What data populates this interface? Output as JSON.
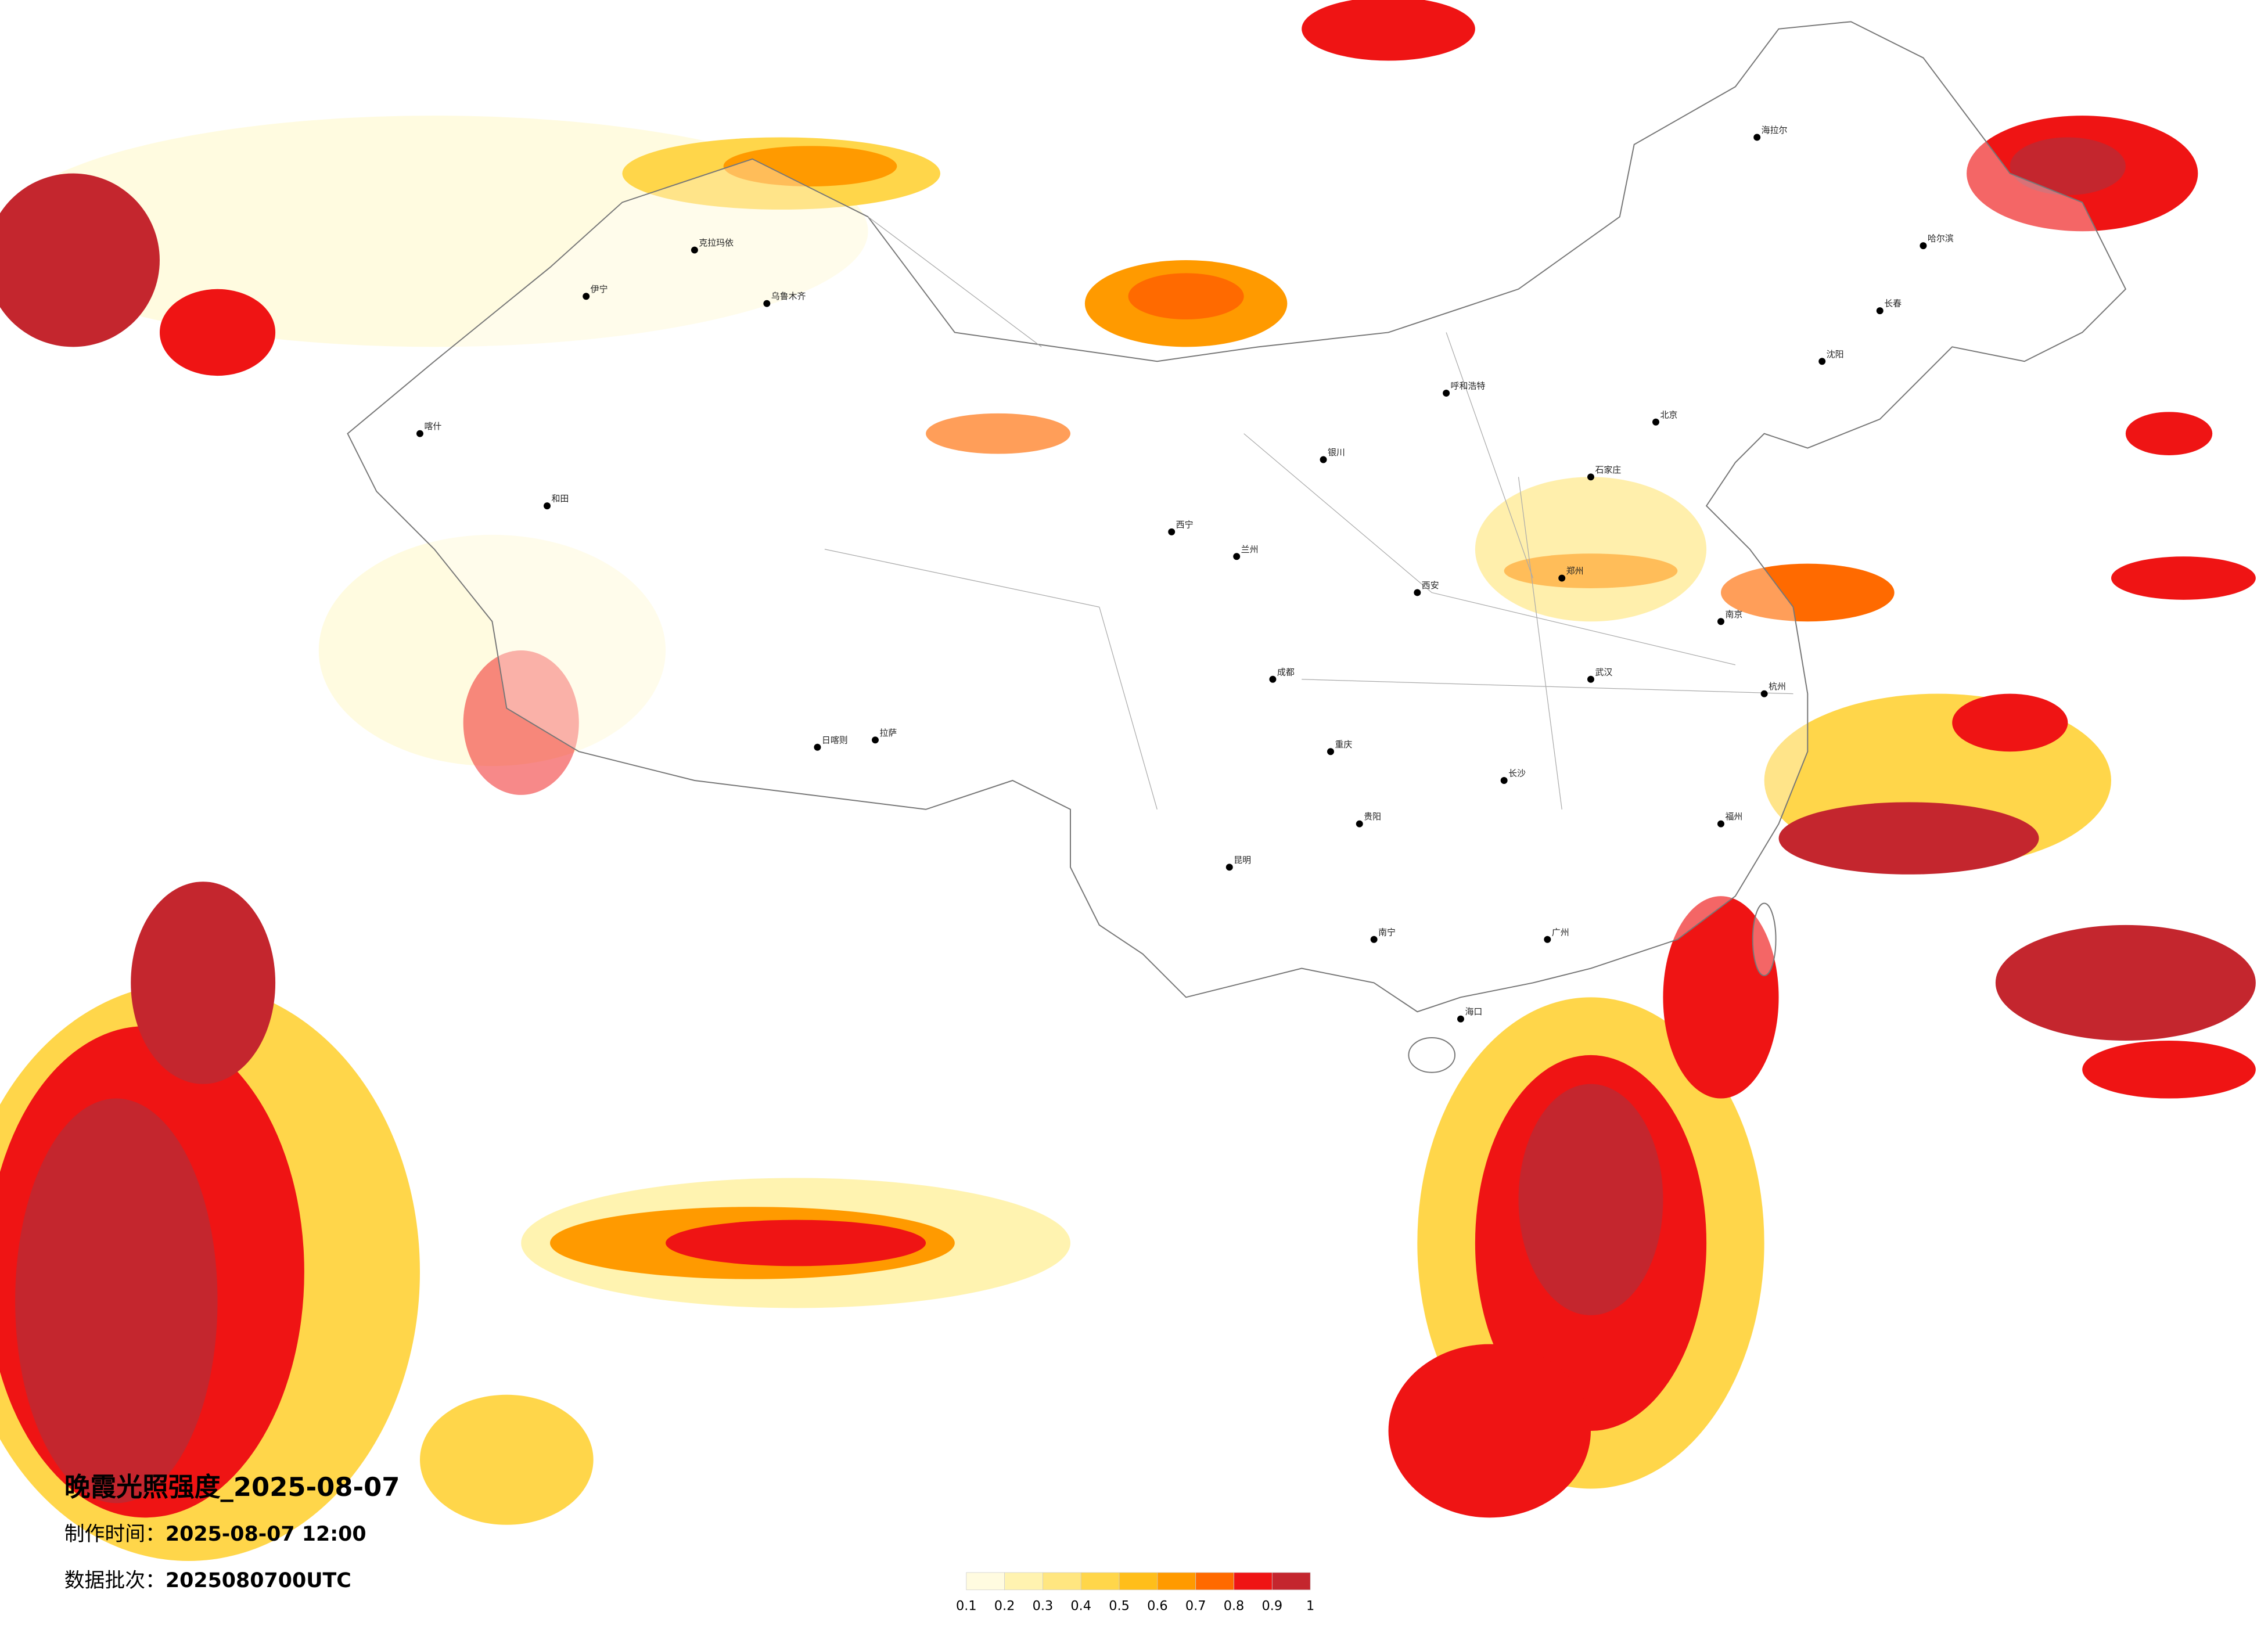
{
  "title": "晚霞光照强度_2025-08-07",
  "make_time": {
    "label": "制作时间：",
    "value": "2025-08-07 12:00"
  },
  "data_batch": {
    "label": "数据批次：",
    "value": "2025080700UTC"
  },
  "legend": {
    "colors": [
      "#fffbe0",
      "#fff3b0",
      "#ffe680",
      "#ffd64a",
      "#ffbe1a",
      "#ff9a00",
      "#ff6a00",
      "#ef1414",
      "#c4262e"
    ],
    "ticks": [
      0.1,
      0.2,
      0.3,
      0.4,
      0.5,
      0.6,
      0.7,
      0.8,
      0.9,
      1
    ]
  },
  "cities": [
    "喀什",
    "和田",
    "克拉玛依",
    "乌鲁木齐",
    "伊宁",
    "拉萨",
    "日喀则",
    "西宁",
    "兰州",
    "银川",
    "呼和浩特",
    "北京",
    "石家庄",
    "郑州",
    "西安",
    "成都",
    "重庆",
    "贵阳",
    "昆明",
    "南宁",
    "广州",
    "长沙",
    "武汉",
    "南京",
    "杭州",
    "福州",
    "海口",
    "沈阳",
    "长春",
    "哈尔滨",
    "海拉尔"
  ]
}
